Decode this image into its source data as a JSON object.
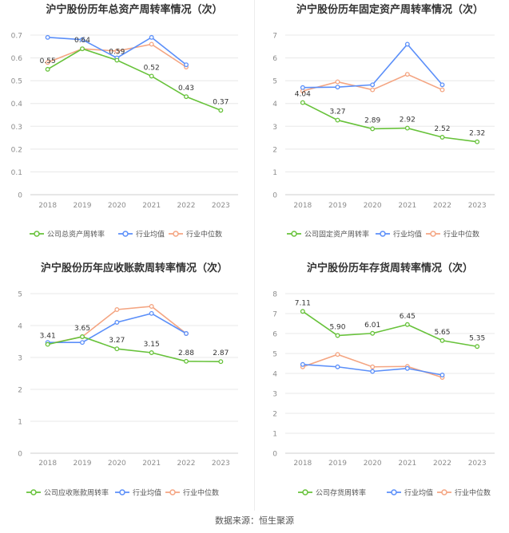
{
  "footer": {
    "source": "数据来源：恒生聚源"
  },
  "colors": {
    "company": "#67c23a",
    "avg": "#5b8ff9",
    "median": "#f4a582",
    "axis_text": "#8c8c8c",
    "grid": "#e8e8e8",
    "title": "#333333"
  },
  "chart_data": [
    {
      "type": "line",
      "title": "沪宁股份历年总资产周转率情况（次）",
      "categories": [
        "2018",
        "2019",
        "2020",
        "2021",
        "2022",
        "2023"
      ],
      "ylim": [
        0,
        0.7
      ],
      "yticks": [
        "0",
        "0.1",
        "0.2",
        "0.3",
        "0.4",
        "0.5",
        "0.6",
        "0.7"
      ],
      "series": [
        {
          "name": "公司总资产周转率",
          "values": [
            0.55,
            0.64,
            0.59,
            0.52,
            0.43,
            0.37
          ],
          "labels": [
            "0.55",
            "0.64",
            "0.59",
            "0.52",
            "0.43",
            "0.37"
          ]
        },
        {
          "name": "行业均值",
          "values": [
            0.69,
            0.68,
            0.6,
            0.69,
            0.57,
            null
          ]
        },
        {
          "name": "行业中位数",
          "values": [
            0.58,
            0.64,
            0.63,
            0.66,
            0.56,
            null
          ]
        }
      ]
    },
    {
      "type": "line",
      "title": "沪宁股份历年固定资产周转率情况（次）",
      "categories": [
        "2018",
        "2019",
        "2020",
        "2021",
        "2022",
        "2023"
      ],
      "ylim": [
        0,
        7
      ],
      "yticks": [
        "0",
        "1",
        "2",
        "3",
        "4",
        "5",
        "6",
        "7"
      ],
      "series": [
        {
          "name": "公司固定资产周转率",
          "values": [
            4.04,
            3.27,
            2.89,
            2.92,
            2.52,
            2.32
          ],
          "labels": [
            "4.04",
            "3.27",
            "2.89",
            "2.92",
            "2.52",
            "2.32"
          ]
        },
        {
          "name": "行业均值",
          "values": [
            4.7,
            4.72,
            4.82,
            6.6,
            4.82,
            null
          ]
        },
        {
          "name": "行业中位数",
          "values": [
            4.55,
            4.95,
            4.6,
            5.28,
            4.6,
            null
          ]
        }
      ]
    },
    {
      "type": "line",
      "title": "沪宁股份历年应收账款周转率情况（次）",
      "categories": [
        "2018",
        "2019",
        "2020",
        "2021",
        "2022",
        "2023"
      ],
      "ylim": [
        0,
        5
      ],
      "yticks": [
        "0",
        "1",
        "2",
        "3",
        "4",
        "5"
      ],
      "series": [
        {
          "name": "公司应收账款周转率",
          "values": [
            3.41,
            3.65,
            3.27,
            3.15,
            2.88,
            2.87
          ],
          "labels": [
            "3.41",
            "3.65",
            "3.27",
            "3.15",
            "2.88",
            "2.87"
          ]
        },
        {
          "name": "行业均值",
          "values": [
            3.47,
            3.47,
            4.1,
            4.38,
            3.75,
            null
          ]
        },
        {
          "name": "行业中位数",
          "values": [
            3.42,
            3.65,
            4.5,
            4.6,
            3.75,
            null
          ]
        }
      ]
    },
    {
      "type": "line",
      "title": "沪宁股份历年存货周转率情况（次）",
      "categories": [
        "2018",
        "2019",
        "2020",
        "2021",
        "2022",
        "2023"
      ],
      "ylim": [
        0,
        8
      ],
      "yticks": [
        "0",
        "1",
        "2",
        "3",
        "4",
        "5",
        "6",
        "7",
        "8"
      ],
      "series": [
        {
          "name": "公司存货周转率",
          "values": [
            7.11,
            5.9,
            6.01,
            6.45,
            5.65,
            5.35
          ],
          "labels": [
            "7.11",
            "5.90",
            "6.01",
            "6.45",
            "5.65",
            "5.35"
          ]
        },
        {
          "name": "行业均值",
          "values": [
            4.45,
            4.33,
            4.1,
            4.25,
            3.92,
            null
          ]
        },
        {
          "name": "行业中位数",
          "values": [
            4.33,
            4.95,
            4.33,
            4.35,
            3.8,
            null
          ]
        }
      ]
    }
  ]
}
